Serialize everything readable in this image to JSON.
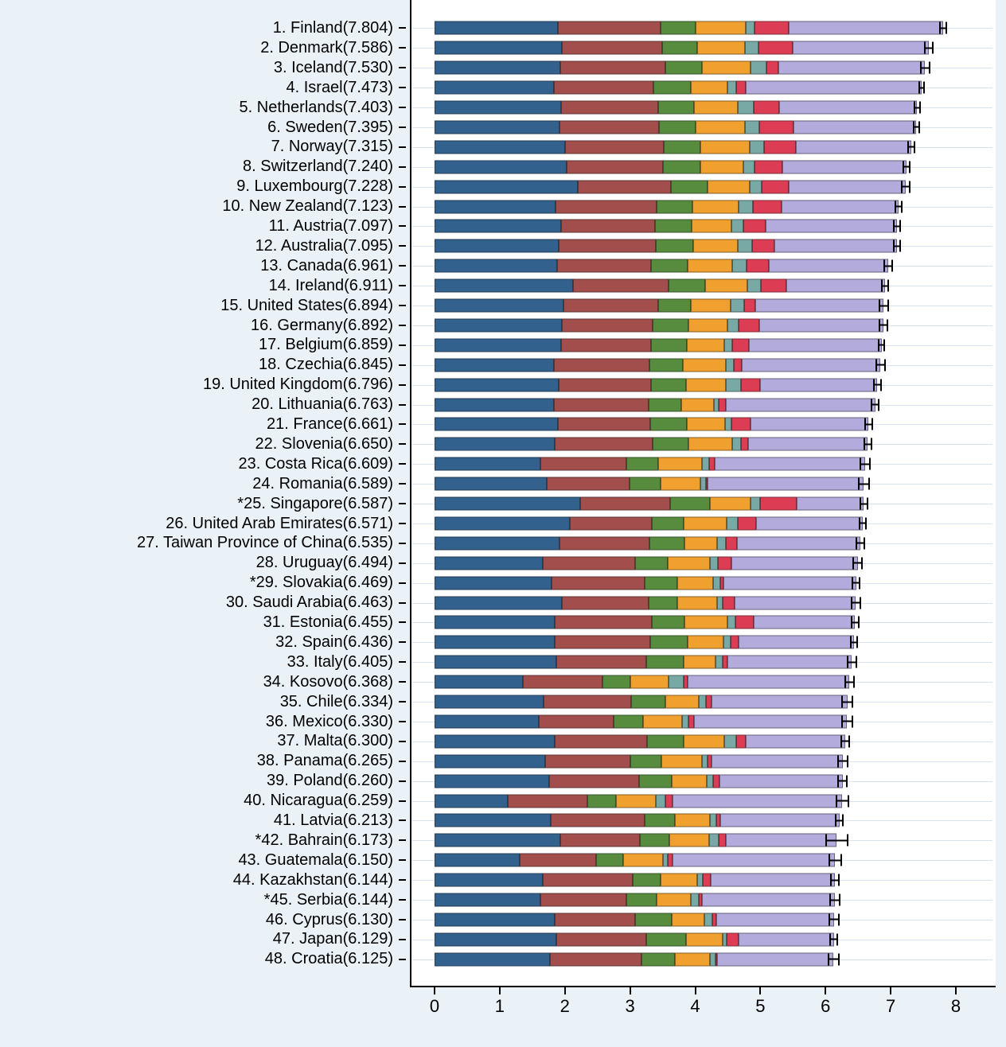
{
  "colors": {
    "background": "#eaf1f7",
    "plot_background": "#ffffff",
    "gridline": "#d7e3ef",
    "axis": "#000000",
    "error_bar": "#000000",
    "segment_colors": [
      "#31618c",
      "#a24e4c",
      "#578c3f",
      "#f0a02e",
      "#79a9a4",
      "#dd3c55",
      "#b3abdc"
    ]
  },
  "chart_data": {
    "type": "bar",
    "subtype": "horizontal_stacked_with_ci_whiskers",
    "title": "",
    "xlabel": "",
    "ylabel": "",
    "xlim": [
      0,
      8
    ],
    "x_ticks": [
      0,
      1,
      2,
      3,
      4,
      5,
      6,
      7,
      8
    ],
    "grid": true,
    "legend_position": "none",
    "series": [
      "dark-blue",
      "dark-red",
      "green",
      "orange",
      "teal",
      "crimson",
      "lavender"
    ],
    "countries": [
      {
        "label": "1. Finland(7.804)",
        "total": 7.804,
        "ci": 0.065,
        "segments": [
          1.888,
          1.585,
          0.535,
          0.772,
          0.126,
          0.535,
          2.363
        ]
      },
      {
        "label": "2. Denmark(7.586)",
        "total": 7.586,
        "ci": 0.07,
        "segments": [
          1.949,
          1.548,
          0.537,
          0.734,
          0.208,
          0.525,
          2.085
        ]
      },
      {
        "label": "3. Iceland(7.530)",
        "total": 7.53,
        "ci": 0.08,
        "segments": [
          1.926,
          1.62,
          0.559,
          0.738,
          0.25,
          0.187,
          2.25
        ]
      },
      {
        "label": "4. Israel(7.473)",
        "total": 7.473,
        "ci": 0.05,
        "segments": [
          1.833,
          1.521,
          0.577,
          0.569,
          0.124,
          0.158,
          2.691
        ]
      },
      {
        "label": "5. Netherlands(7.403)",
        "total": 7.403,
        "ci": 0.055,
        "segments": [
          1.945,
          1.488,
          0.545,
          0.672,
          0.251,
          0.394,
          2.108
        ]
      },
      {
        "label": "6. Sweden(7.395)",
        "total": 7.395,
        "ci": 0.06,
        "segments": [
          1.921,
          1.526,
          0.562,
          0.754,
          0.216,
          0.524,
          1.892
        ]
      },
      {
        "label": "7. Norway(7.315)",
        "total": 7.315,
        "ci": 0.065,
        "segments": [
          1.997,
          1.521,
          0.562,
          0.754,
          0.225,
          0.484,
          1.772
        ]
      },
      {
        "label": "8. Switzerland(7.240)",
        "total": 7.24,
        "ci": 0.06,
        "segments": [
          2.026,
          1.474,
          0.582,
          0.661,
          0.172,
          0.428,
          1.897
        ]
      },
      {
        "label": "9. Luxembourg(7.228)",
        "total": 7.228,
        "ci": 0.075,
        "segments": [
          2.2,
          1.423,
          0.566,
          0.653,
          0.176,
          0.418,
          1.792
        ]
      },
      {
        "label": "10. New Zealand(7.123)",
        "total": 7.123,
        "ci": 0.06,
        "segments": [
          1.86,
          1.548,
          0.554,
          0.7,
          0.218,
          0.448,
          1.795
        ]
      },
      {
        "label": "11. Austria(7.097)",
        "total": 7.097,
        "ci": 0.065,
        "segments": [
          1.945,
          1.44,
          0.56,
          0.611,
          0.186,
          0.341,
          2.014
        ]
      },
      {
        "label": "12. Australia(7.095)",
        "total": 7.095,
        "ci": 0.065,
        "segments": [
          1.9,
          1.498,
          0.567,
          0.684,
          0.224,
          0.342,
          1.88
        ]
      },
      {
        "label": "13. Canada(6.961)",
        "total": 6.961,
        "ci": 0.07,
        "segments": [
          1.886,
          1.44,
          0.56,
          0.682,
          0.215,
          0.35,
          1.828
        ]
      },
      {
        "label": "14. Ireland(6.911)",
        "total": 6.911,
        "ci": 0.065,
        "segments": [
          2.129,
          1.466,
          0.563,
          0.641,
          0.204,
          0.402,
          1.506
        ]
      },
      {
        "label": "15. United States(6.894)",
        "total": 6.894,
        "ci": 0.075,
        "segments": [
          1.982,
          1.446,
          0.51,
          0.6,
          0.211,
          0.168,
          1.977
        ]
      },
      {
        "label": "16. Germany(6.892)",
        "total": 6.892,
        "ci": 0.075,
        "segments": [
          1.949,
          1.4,
          0.55,
          0.6,
          0.17,
          0.31,
          1.913
        ]
      },
      {
        "label": "17. Belgium(6.859)",
        "total": 6.859,
        "ci": 0.06,
        "segments": [
          1.936,
          1.388,
          0.55,
          0.571,
          0.122,
          0.255,
          2.037
        ]
      },
      {
        "label": "18. Czechia(6.845)",
        "total": 6.845,
        "ci": 0.075,
        "segments": [
          1.833,
          1.459,
          0.52,
          0.655,
          0.124,
          0.118,
          2.136
        ]
      },
      {
        "label": "19. United Kingdom(6.796)",
        "total": 6.796,
        "ci": 0.07,
        "segments": [
          1.9,
          1.421,
          0.54,
          0.608,
          0.236,
          0.293,
          1.798
        ]
      },
      {
        "label": "20. Lithuania(6.763)",
        "total": 6.763,
        "ci": 0.065,
        "segments": [
          1.829,
          1.462,
          0.49,
          0.507,
          0.07,
          0.11,
          2.295
        ]
      },
      {
        "label": "21. France(6.661)",
        "total": 6.661,
        "ci": 0.065,
        "segments": [
          1.896,
          1.411,
          0.57,
          0.576,
          0.103,
          0.29,
          1.815
        ]
      },
      {
        "label": "22. Slovenia(6.650)",
        "total": 6.65,
        "ci": 0.065,
        "segments": [
          1.845,
          1.507,
          0.54,
          0.675,
          0.13,
          0.11,
          1.843
        ]
      },
      {
        "label": "23. Costa Rica(6.609)",
        "total": 6.609,
        "ci": 0.09,
        "segments": [
          1.62,
          1.318,
          0.5,
          0.67,
          0.1,
          0.09,
          2.311
        ]
      },
      {
        "label": "24. Romania(6.589)",
        "total": 6.589,
        "ci": 0.09,
        "segments": [
          1.72,
          1.27,
          0.48,
          0.614,
          0.08,
          0.03,
          2.395
        ]
      },
      {
        "label": "*25. Singapore(6.587)",
        "total": 6.587,
        "ci": 0.07,
        "segments": [
          2.236,
          1.382,
          0.61,
          0.617,
          0.146,
          0.57,
          1.026
        ]
      },
      {
        "label": "26. United Arab Emirates(6.571)",
        "total": 6.571,
        "ci": 0.065,
        "segments": [
          2.08,
          1.257,
          0.48,
          0.67,
          0.17,
          0.28,
          1.634
        ]
      },
      {
        "label": "27. Taiwan Province of China(6.535)",
        "total": 6.535,
        "ci": 0.07,
        "segments": [
          1.92,
          1.38,
          0.54,
          0.5,
          0.13,
          0.17,
          1.895
        ]
      },
      {
        "label": "28. Uruguay(6.494)",
        "total": 6.494,
        "ci": 0.08,
        "segments": [
          1.66,
          1.42,
          0.5,
          0.65,
          0.12,
          0.2,
          1.944
        ]
      },
      {
        "label": "*29. Slovakia(6.469)",
        "total": 6.469,
        "ci": 0.07,
        "segments": [
          1.79,
          1.44,
          0.5,
          0.54,
          0.11,
          0.06,
          2.029
        ]
      },
      {
        "label": "30. Saudi Arabia(6.463)",
        "total": 6.463,
        "ci": 0.08,
        "segments": [
          1.96,
          1.32,
          0.44,
          0.62,
          0.08,
          0.18,
          1.863
        ]
      },
      {
        "label": "31. Estonia(6.455)",
        "total": 6.455,
        "ci": 0.065,
        "segments": [
          1.85,
          1.49,
          0.5,
          0.66,
          0.12,
          0.28,
          1.555
        ]
      },
      {
        "label": "32. Spain(6.436)",
        "total": 6.436,
        "ci": 0.065,
        "segments": [
          1.85,
          1.46,
          0.58,
          0.54,
          0.11,
          0.12,
          1.776
        ]
      },
      {
        "label": "33. Italy(6.405)",
        "total": 6.405,
        "ci": 0.08,
        "segments": [
          1.87,
          1.38,
          0.57,
          0.49,
          0.11,
          0.07,
          1.915
        ]
      },
      {
        "label": "34. Kosovo(6.368)",
        "total": 6.368,
        "ci": 0.08,
        "segments": [
          1.36,
          1.22,
          0.42,
          0.59,
          0.23,
          0.07,
          2.478
        ]
      },
      {
        "label": "35. Chile(6.334)",
        "total": 6.334,
        "ci": 0.09,
        "segments": [
          1.67,
          1.35,
          0.52,
          0.52,
          0.11,
          0.08,
          2.084
        ]
      },
      {
        "label": "36. Mexico(6.330)",
        "total": 6.33,
        "ci": 0.09,
        "segments": [
          1.6,
          1.15,
          0.45,
          0.6,
          0.1,
          0.08,
          2.35
        ]
      },
      {
        "label": "37. Malta(6.300)",
        "total": 6.3,
        "ci": 0.07,
        "segments": [
          1.85,
          1.41,
          0.56,
          0.62,
          0.19,
          0.15,
          1.52
        ]
      },
      {
        "label": "38. Panama(6.265)",
        "total": 6.265,
        "ci": 0.09,
        "segments": [
          1.7,
          1.3,
          0.48,
          0.62,
          0.09,
          0.06,
          2.015
        ]
      },
      {
        "label": "39. Poland(6.260)",
        "total": 6.26,
        "ci": 0.08,
        "segments": [
          1.76,
          1.38,
          0.5,
          0.54,
          0.09,
          0.1,
          1.89
        ]
      },
      {
        "label": "40. Nicaragua(6.259)",
        "total": 6.259,
        "ci": 0.1,
        "segments": [
          1.12,
          1.22,
          0.45,
          0.61,
          0.14,
          0.11,
          2.609
        ]
      },
      {
        "label": "41. Latvia(6.213)",
        "total": 6.213,
        "ci": 0.07,
        "segments": [
          1.78,
          1.44,
          0.47,
          0.54,
          0.09,
          0.06,
          1.833
        ]
      },
      {
        "label": "*42. Bahrain(6.173)",
        "total": 6.173,
        "ci": 0.18,
        "segments": [
          1.93,
          1.22,
          0.45,
          0.61,
          0.15,
          0.11,
          1.703
        ]
      },
      {
        "label": "43. Guatemala(6.150)",
        "total": 6.15,
        "ci": 0.1,
        "segments": [
          1.31,
          1.17,
          0.42,
          0.6,
          0.08,
          0.07,
          2.5
        ]
      },
      {
        "label": "44. Kazakhstan(6.144)",
        "total": 6.144,
        "ci": 0.075,
        "segments": [
          1.66,
          1.38,
          0.43,
          0.56,
          0.09,
          0.12,
          1.904
        ]
      },
      {
        "label": "*45. Serbia(6.144)",
        "total": 6.144,
        "ci": 0.08,
        "segments": [
          1.62,
          1.32,
          0.47,
          0.52,
          0.12,
          0.06,
          2.034
        ]
      },
      {
        "label": "46. Cyprus(6.130)",
        "total": 6.13,
        "ci": 0.09,
        "segments": [
          1.85,
          1.23,
          0.56,
          0.5,
          0.12,
          0.06,
          1.81
        ]
      },
      {
        "label": "47. Japan(6.129)",
        "total": 6.129,
        "ci": 0.065,
        "segments": [
          1.87,
          1.38,
          0.61,
          0.56,
          0.06,
          0.19,
          1.459
        ]
      },
      {
        "label": "48. Croatia(6.125)",
        "total": 6.125,
        "ci": 0.09,
        "segments": [
          1.77,
          1.4,
          0.52,
          0.54,
          0.08,
          0.03,
          1.785
        ]
      }
    ]
  }
}
